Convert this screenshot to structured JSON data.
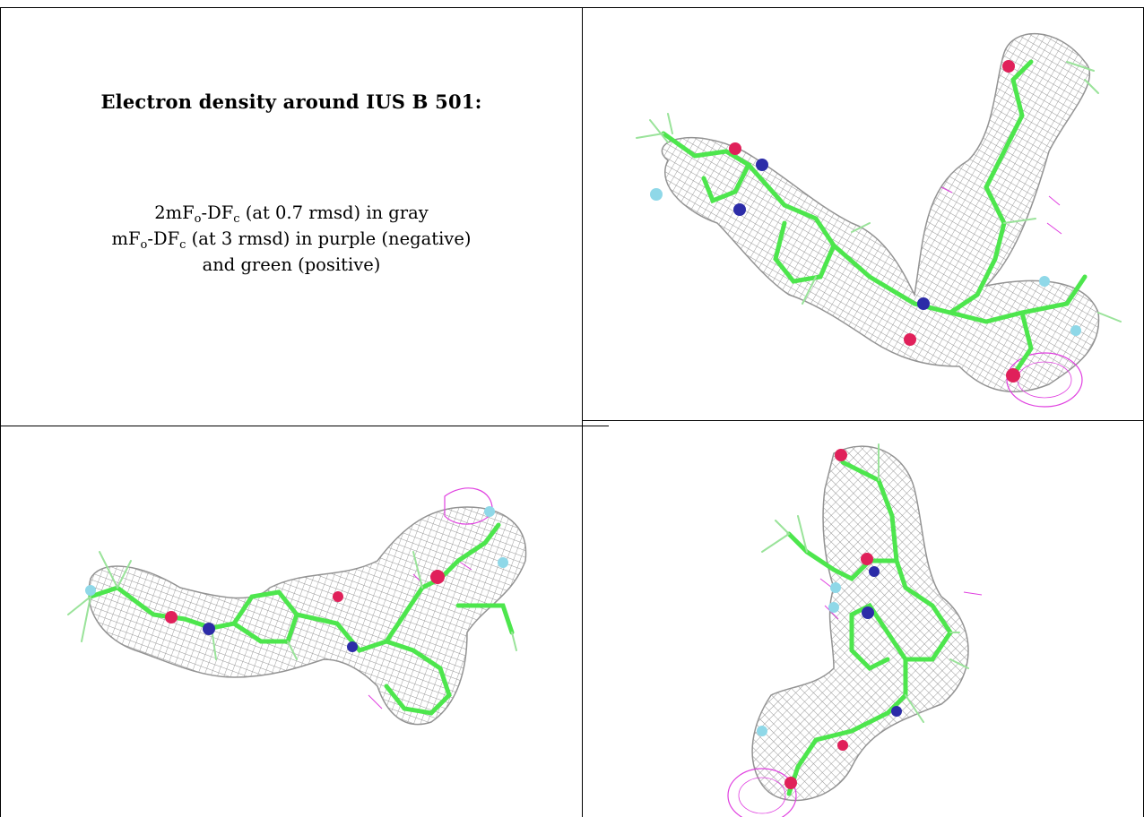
{
  "panel_text": {
    "title": "Electron density around IUS B 501:",
    "line1_a": "2mF",
    "line1_sub1": "o",
    "line1_b": "-DF",
    "line1_sub2": "c",
    "line1_c": " (at 0.7 rmsd) in gray",
    "line2_a": "mF",
    "line2_sub1": "o",
    "line2_b": "-DF",
    "line2_sub2": "c",
    "line2_c": " (at 3 rmsd) in purple (negative)",
    "line3": "and green (positive)"
  },
  "colors": {
    "density_mesh": "#8a8a8a",
    "carbon": "#4de64d",
    "oxygen": "#e0205a",
    "nitrogen": "#2c2ca8",
    "fluorine": "#8fd8e8",
    "negative_density": "#e040e0"
  },
  "figures": [
    {
      "id": "view-top-right"
    },
    {
      "id": "view-bottom-left"
    },
    {
      "id": "view-bottom-right"
    }
  ]
}
